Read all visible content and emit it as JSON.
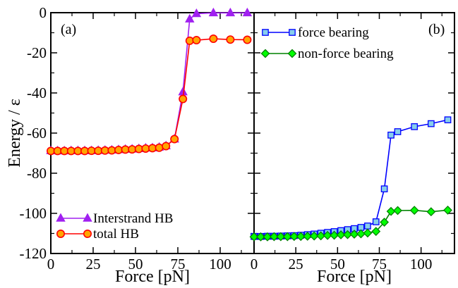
{
  "chart_data": [
    {
      "panel": "(a)",
      "type": "line",
      "xlabel": "Force [pN]",
      "ylabel": "Energy / ε",
      "xlim": [
        0,
        120
      ],
      "ylim": [
        -120,
        0
      ],
      "xticks": [
        0,
        25,
        50,
        75,
        100
      ],
      "yticks": [
        0,
        -20,
        -40,
        -60,
        -80,
        -100,
        -120
      ],
      "xtick_labels": [
        "0",
        "25",
        "50",
        "75",
        "100"
      ],
      "ytick_labels": [
        "0",
        "-20",
        "-40",
        "-60",
        "-80",
        "-100",
        "-120"
      ],
      "legend_position": "bottom-left",
      "series": [
        {
          "name": "Interstrand HB",
          "color": "#a020f0",
          "marker": "triangle",
          "markerFill": "#a020f0",
          "x": [
            0,
            4,
            8,
            12,
            16,
            20,
            24,
            28,
            32,
            36,
            40,
            44,
            48,
            52,
            56,
            60,
            64,
            68,
            73,
            78,
            82,
            86,
            96,
            106,
            116
          ],
          "y": [
            -68.8,
            -68.9,
            -68.9,
            -68.8,
            -68.8,
            -68.8,
            -68.8,
            -68.7,
            -68.6,
            -68.5,
            -68.3,
            -68.1,
            -68.0,
            -67.8,
            -67.5,
            -67.4,
            -67.1,
            -66.4,
            -63.0,
            -39.5,
            -3.2,
            -0.5,
            -0.1,
            -0.1,
            -0.1
          ]
        },
        {
          "name": "total HB",
          "color": "#ff0000",
          "marker": "circle",
          "markerFill": "#ffa500",
          "x": [
            0,
            4,
            8,
            12,
            16,
            20,
            24,
            28,
            32,
            36,
            40,
            44,
            48,
            52,
            56,
            60,
            64,
            68,
            73,
            78,
            82,
            86,
            96,
            106,
            116
          ],
          "y": [
            -68.9,
            -68.9,
            -68.9,
            -68.9,
            -68.9,
            -68.9,
            -68.8,
            -68.8,
            -68.7,
            -68.6,
            -68.4,
            -68.2,
            -68.1,
            -67.9,
            -67.7,
            -67.5,
            -67.3,
            -66.5,
            -63.0,
            -43.0,
            -14.0,
            -13.7,
            -13.0,
            -13.4,
            -13.5
          ]
        }
      ]
    },
    {
      "panel": "(b)",
      "type": "line",
      "xlabel": "Force [pN]",
      "xlim": [
        0,
        120
      ],
      "ylim": [
        -120,
        0
      ],
      "xticks": [
        0,
        25,
        50,
        75,
        100
      ],
      "xtick_labels": [
        "0",
        "25",
        "50",
        "75",
        "100"
      ],
      "legend_position": "top-left",
      "series": [
        {
          "name": "force bearing",
          "color": "#0000ff",
          "marker": "square",
          "markerFill": "#87ceeb",
          "x": [
            0,
            4,
            8,
            12,
            16,
            20,
            24,
            28,
            32,
            36,
            40,
            44,
            48,
            52,
            56,
            60,
            64,
            68,
            73,
            78,
            82,
            86,
            96,
            106,
            116
          ],
          "y": [
            -111.5,
            -111.5,
            -111.4,
            -111.4,
            -111.3,
            -111.2,
            -111.1,
            -110.9,
            -110.6,
            -110.3,
            -109.9,
            -109.5,
            -109.1,
            -108.6,
            -108.1,
            -107.6,
            -107.0,
            -106.3,
            -104.2,
            -87.8,
            -61.0,
            -59.3,
            -56.8,
            -55.3,
            -53.4
          ]
        },
        {
          "name": "non-force bearing",
          "color": "#008000",
          "marker": "diamond",
          "markerFill": "#00ff00",
          "x": [
            0,
            4,
            8,
            12,
            16,
            20,
            24,
            28,
            32,
            36,
            40,
            44,
            48,
            52,
            56,
            60,
            64,
            68,
            73,
            78,
            82,
            86,
            96,
            106,
            116
          ],
          "y": [
            -111.7,
            -111.7,
            -111.7,
            -111.6,
            -111.6,
            -111.6,
            -111.5,
            -111.5,
            -111.4,
            -111.3,
            -111.2,
            -111.0,
            -110.9,
            -110.7,
            -110.6,
            -110.4,
            -110.2,
            -109.8,
            -109.0,
            -104.4,
            -99.0,
            -98.6,
            -98.5,
            -99.2,
            -98.4
          ]
        }
      ]
    }
  ]
}
